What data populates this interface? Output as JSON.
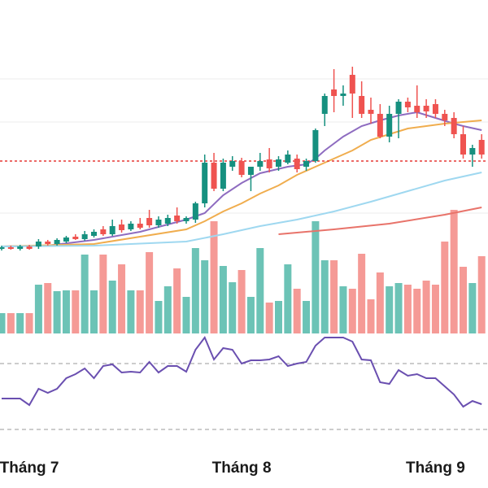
{
  "chart_data": {
    "type": "candlestick",
    "ylim": [
      190,
      600
    ],
    "grid_levels": [
      503,
      450,
      338
    ],
    "reference_line": 402,
    "up_color": "#16907f",
    "down_color": "#ef5350",
    "candles": [
      [
        294,
        298,
        292,
        296
      ],
      [
        296,
        298,
        293,
        294
      ],
      [
        294,
        299,
        292,
        297
      ],
      [
        297,
        299,
        293,
        294
      ],
      [
        297,
        306,
        294,
        303
      ],
      [
        303,
        305,
        298,
        300
      ],
      [
        300,
        307,
        298,
        305
      ],
      [
        303,
        310,
        301,
        308
      ],
      [
        309,
        312,
        305,
        306
      ],
      [
        306,
        316,
        304,
        312
      ],
      [
        310,
        318,
        308,
        315
      ],
      [
        318,
        322,
        310,
        312
      ],
      [
        312,
        330,
        310,
        322
      ],
      [
        324,
        330,
        314,
        317
      ],
      [
        318,
        328,
        316,
        325
      ],
      [
        325,
        332,
        318,
        320
      ],
      [
        332,
        342,
        320,
        323
      ],
      [
        323,
        334,
        320,
        330
      ],
      [
        325,
        336,
        322,
        332
      ],
      [
        335,
        345,
        325,
        328
      ],
      [
        328,
        334,
        325,
        332
      ],
      [
        330,
        352,
        326,
        350
      ],
      [
        350,
        410,
        345,
        400
      ],
      [
        400,
        412,
        365,
        368
      ],
      [
        368,
        405,
        365,
        400
      ],
      [
        395,
        408,
        390,
        402
      ],
      [
        402,
        406,
        382,
        385
      ],
      [
        385,
        395,
        365,
        395
      ],
      [
        395,
        412,
        390,
        402
      ],
      [
        404,
        418,
        388,
        393
      ],
      [
        395,
        408,
        390,
        404
      ],
      [
        400,
        415,
        398,
        410
      ],
      [
        405,
        410,
        388,
        392
      ],
      [
        395,
        405,
        390,
        402
      ],
      [
        402,
        442,
        400,
        440
      ],
      [
        460,
        485,
        445,
        482
      ],
      [
        490,
        515,
        462,
        482
      ],
      [
        482,
        495,
        470,
        485
      ],
      [
        508,
        518,
        455,
        485
      ],
      [
        482,
        500,
        455,
        460
      ],
      [
        465,
        480,
        448,
        460
      ],
      [
        460,
        472,
        430,
        432
      ],
      [
        432,
        470,
        425,
        460
      ],
      [
        460,
        478,
        430,
        475
      ],
      [
        475,
        480,
        462,
        468
      ],
      [
        470,
        495,
        455,
        462
      ],
      [
        470,
        478,
        455,
        463
      ],
      [
        472,
        478,
        455,
        460
      ],
      [
        460,
        465,
        445,
        452
      ],
      [
        455,
        462,
        430,
        435
      ],
      [
        435,
        445,
        405,
        410
      ],
      [
        410,
        422,
        395,
        418
      ],
      [
        428,
        435,
        405,
        410
      ]
    ],
    "series": [
      {
        "color": "#8e6cc0",
        "x": [
          0,
          5,
          10,
          15,
          20,
          22,
          24,
          26,
          28,
          31,
          33,
          34,
          35,
          37,
          39,
          41,
          43,
          45,
          47,
          49,
          50,
          52
        ],
        "values": [
          297,
          298,
          305,
          315,
          330,
          338,
          360,
          375,
          387,
          395,
          398,
          405,
          415,
          432,
          445,
          452,
          458,
          462,
          455,
          448,
          445,
          440
        ]
      },
      {
        "color": "#f0ad4e",
        "x": [
          0,
          10,
          20,
          22,
          24,
          26,
          28,
          30,
          32,
          34,
          36,
          38,
          40,
          42,
          44,
          46,
          48,
          50,
          52
        ],
        "values": [
          297,
          300,
          318,
          328,
          340,
          350,
          362,
          372,
          385,
          395,
          405,
          415,
          428,
          435,
          442,
          445,
          448,
          450,
          452
        ]
      },
      {
        "color": "#9fd8f0",
        "x": [
          0,
          10,
          20,
          24,
          28,
          32,
          36,
          40,
          44,
          48,
          52
        ],
        "values": [
          297,
          298,
          303,
          312,
          322,
          330,
          340,
          352,
          365,
          378,
          388
        ]
      },
      {
        "color": "#e8736a",
        "x": [
          30,
          36,
          42,
          48,
          52
        ],
        "values": [
          312,
          318,
          325,
          336,
          345
        ]
      }
    ],
    "volume": {
      "ylim": [
        0,
        410
      ],
      "up_color": "#6cc3b6",
      "down_color": "#f59a96",
      "values": [
        25,
        25,
        25,
        25,
        60,
        62,
        52,
        53,
        53,
        97,
        53,
        97,
        65,
        85,
        53,
        53,
        100,
        40,
        58,
        80,
        45,
        105,
        90,
        138,
        83,
        63,
        78,
        45,
        105,
        38,
        40,
        85,
        55,
        40,
        138,
        90,
        90,
        58,
        55,
        98,
        42,
        75,
        58,
        62,
        60,
        55,
        65,
        60,
        113,
        152,
        82,
        62,
        95
      ]
    },
    "oscillator": {
      "ylim": [
        50,
        200
      ],
      "color": "#6a4fb0",
      "levels": [
        153,
        72
      ],
      "values": [
        110,
        110,
        110,
        102,
        122,
        117,
        122,
        135,
        140,
        147,
        135,
        150,
        152,
        142,
        143,
        142,
        155,
        142,
        150,
        150,
        143,
        170,
        185,
        158,
        172,
        170,
        153,
        157,
        157,
        158,
        162,
        150,
        153,
        155,
        175,
        185,
        185,
        185,
        180,
        158,
        157,
        130,
        128,
        145,
        138,
        140,
        135,
        135,
        125,
        115,
        100,
        107,
        103
      ]
    },
    "month_labels": [
      "Tháng 7",
      "Tháng 8",
      "Tháng 9"
    ],
    "month_label_index": [
      3,
      26,
      47
    ]
  }
}
